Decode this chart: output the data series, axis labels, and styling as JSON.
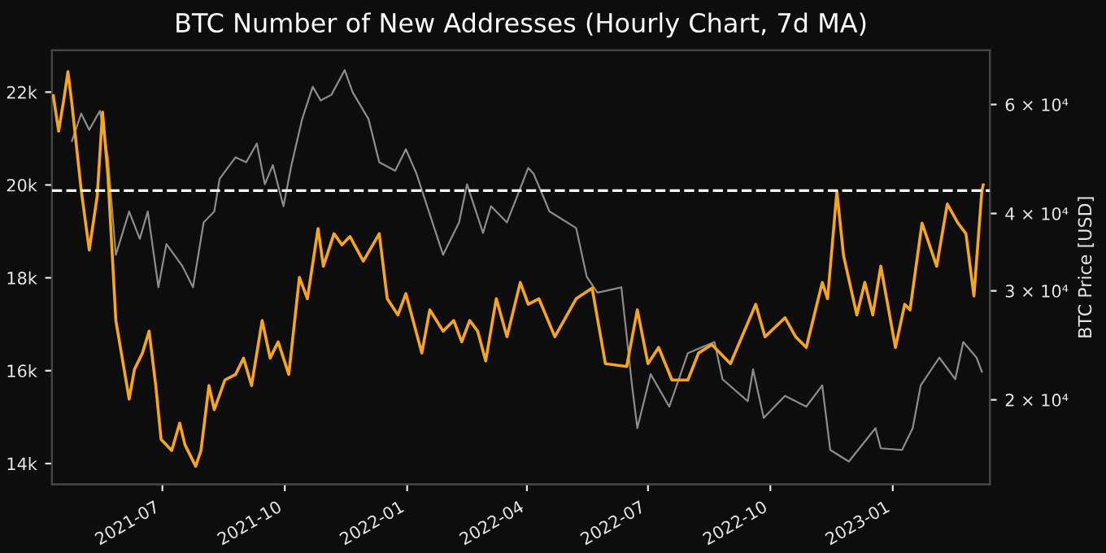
{
  "chart_data": {
    "type": "line",
    "title": "BTC Number of New Addresses (Hourly Chart, 7d MA)",
    "y2label": "BTC Price [USD]",
    "xlim": [
      "2021-04-09",
      "2023-03-15"
    ],
    "xticks": [
      {
        "value": "2021-07",
        "label": "2021-07"
      },
      {
        "value": "2021-10",
        "label": "2021-10"
      },
      {
        "value": "2022-01",
        "label": "2022-01"
      },
      {
        "value": "2022-04",
        "label": "2022-04"
      },
      {
        "value": "2022-07",
        "label": "2022-07"
      },
      {
        "value": "2022-10",
        "label": "2022-10"
      },
      {
        "value": "2023-01",
        "label": "2023-01"
      }
    ],
    "ylim": [
      13550,
      22900
    ],
    "yticks": [
      {
        "value": 14000,
        "label": "14k"
      },
      {
        "value": 16000,
        "label": "16k"
      },
      {
        "value": 18000,
        "label": "18k"
      },
      {
        "value": 20000,
        "label": "20k"
      },
      {
        "value": 22000,
        "label": "22k"
      }
    ],
    "log": "y2",
    "y2lim": [
      14600,
      73400
    ],
    "y2ticks": [
      {
        "value": 20000,
        "label": "2 × 10⁴"
      },
      {
        "value": 30000,
        "label": "3 × 10⁴"
      },
      {
        "value": 40000,
        "label": "4 × 10⁴"
      },
      {
        "value": 60000,
        "label": "6 × 10⁴"
      }
    ],
    "grid": false,
    "ref_lines": [
      {
        "axis": "y",
        "value": 19880,
        "color": "#ffffff",
        "line_style": "dashed"
      }
    ],
    "series": [
      {
        "axis": "y2",
        "color": "#8c8c8c",
        "x": [
          "2021-04-24",
          "2021-05-01",
          "2021-05-07",
          "2021-05-15",
          "2021-05-21",
          "2021-05-27",
          "2021-06-06",
          "2021-06-14",
          "2021-06-20",
          "2021-06-28",
          "2021-07-04",
          "2021-07-16",
          "2021-07-24",
          "2021-08-01",
          "2021-08-09",
          "2021-08-13",
          "2021-08-25",
          "2021-09-02",
          "2021-09-10",
          "2021-09-16",
          "2021-09-22",
          "2021-09-30",
          "2021-10-06",
          "2021-10-14",
          "2021-10-22",
          "2021-10-28",
          "2021-11-05",
          "2021-11-15",
          "2021-11-21",
          "2021-12-03",
          "2021-12-11",
          "2021-12-23",
          "2021-12-31",
          "2022-01-08",
          "2022-01-16",
          "2022-01-28",
          "2022-02-09",
          "2022-02-15",
          "2022-02-27",
          "2022-03-05",
          "2022-03-17",
          "2022-04-02",
          "2022-04-06",
          "2022-04-18",
          "2022-05-08",
          "2022-05-16",
          "2022-05-24",
          "2022-06-11",
          "2022-06-19",
          "2022-06-23",
          "2022-07-03",
          "2022-07-17",
          "2022-07-31",
          "2022-08-20",
          "2022-08-26",
          "2022-09-14",
          "2022-09-18",
          "2022-09-26",
          "2022-10-12",
          "2022-10-28",
          "2022-11-09",
          "2022-11-15",
          "2022-11-29",
          "2022-12-19",
          "2022-12-23",
          "2023-01-08",
          "2023-01-16",
          "2023-01-22",
          "2023-02-05",
          "2023-02-17",
          "2023-02-23",
          "2023-03-05",
          "2023-03-09"
        ],
        "values": [
          52400,
          58000,
          54600,
          58600,
          49300,
          34300,
          40300,
          36400,
          40300,
          30400,
          35700,
          32900,
          30400,
          38700,
          40300,
          45500,
          49300,
          48400,
          51900,
          44600,
          47900,
          41100,
          47900,
          56800,
          64100,
          60900,
          62200,
          68200,
          62800,
          56800,
          48400,
          46900,
          50800,
          46400,
          41100,
          34300,
          38700,
          44600,
          37200,
          41100,
          38700,
          47400,
          46400,
          40300,
          37900,
          31600,
          29800,
          30400,
          21100,
          18000,
          22000,
          19500,
          23800,
          24800,
          21600,
          19900,
          22400,
          18700,
          20300,
          19500,
          21100,
          16600,
          15900,
          18000,
          16700,
          16600,
          18000,
          21100,
          23400,
          21600,
          24800,
          23400,
          22200
        ]
      },
      {
        "color": "#f7a51c",
        "x": [
          "2021-04-10",
          "2021-04-14",
          "2021-04-18",
          "2021-04-21",
          "2021-04-24",
          "2021-05-01",
          "2021-05-07",
          "2021-05-13",
          "2021-05-17",
          "2021-05-21",
          "2021-05-27",
          "2021-06-06",
          "2021-06-10",
          "2021-06-16",
          "2021-06-21",
          "2021-06-26",
          "2021-06-30",
          "2021-07-08",
          "2021-07-14",
          "2021-07-18",
          "2021-07-26",
          "2021-07-30",
          "2021-08-05",
          "2021-08-09",
          "2021-08-17",
          "2021-08-25",
          "2021-08-31",
          "2021-09-06",
          "2021-09-14",
          "2021-09-20",
          "2021-09-26",
          "2021-10-04",
          "2021-10-12",
          "2021-10-18",
          "2021-10-26",
          "2021-10-30",
          "2021-11-07",
          "2021-11-13",
          "2021-11-19",
          "2021-11-29",
          "2021-12-11",
          "2021-12-17",
          "2021-12-25",
          "2021-12-31",
          "2022-01-12",
          "2022-01-18",
          "2022-01-28",
          "2022-02-05",
          "2022-02-11",
          "2022-02-17",
          "2022-02-23",
          "2022-03-01",
          "2022-03-09",
          "2022-03-17",
          "2022-03-27",
          "2022-04-02",
          "2022-04-10",
          "2022-04-22",
          "2022-05-08",
          "2022-05-20",
          "2022-05-30",
          "2022-06-15",
          "2022-06-23",
          "2022-07-01",
          "2022-07-09",
          "2022-07-19",
          "2022-07-31",
          "2022-08-08",
          "2022-08-18",
          "2022-09-01",
          "2022-09-20",
          "2022-09-27",
          "2022-10-12",
          "2022-10-20",
          "2022-10-28",
          "2022-11-09",
          "2022-11-13",
          "2022-11-20",
          "2022-11-25",
          "2022-12-05",
          "2022-12-11",
          "2022-12-17",
          "2022-12-23",
          "2023-01-03",
          "2023-01-10",
          "2023-01-14",
          "2023-01-23",
          "2023-02-03",
          "2023-02-11",
          "2023-02-19",
          "2023-02-25",
          "2023-03-03",
          "2023-03-09",
          "2023-03-10"
        ],
        "values": [
          21920,
          21160,
          21860,
          22440,
          21740,
          19880,
          18600,
          19760,
          21570,
          20230,
          17080,
          15390,
          16030,
          16380,
          16850,
          15680,
          14520,
          14280,
          14870,
          14400,
          13940,
          14280,
          15680,
          15160,
          15800,
          15920,
          16270,
          15680,
          17080,
          16270,
          16620,
          15920,
          18010,
          17550,
          19060,
          18250,
          18950,
          18710,
          18890,
          18360,
          18950,
          17550,
          17200,
          17660,
          16380,
          17310,
          16850,
          17080,
          16620,
          17080,
          16850,
          16210,
          17550,
          16730,
          17900,
          17430,
          17550,
          16730,
          17550,
          17780,
          16150,
          16090,
          17310,
          16150,
          16500,
          15800,
          15800,
          16380,
          16560,
          16150,
          17430,
          16730,
          17140,
          16730,
          16500,
          17900,
          17550,
          19860,
          18480,
          17200,
          17900,
          17200,
          18250,
          16500,
          17430,
          17310,
          19180,
          18250,
          19590,
          19180,
          18950,
          17610,
          19880,
          20000
        ]
      }
    ]
  }
}
